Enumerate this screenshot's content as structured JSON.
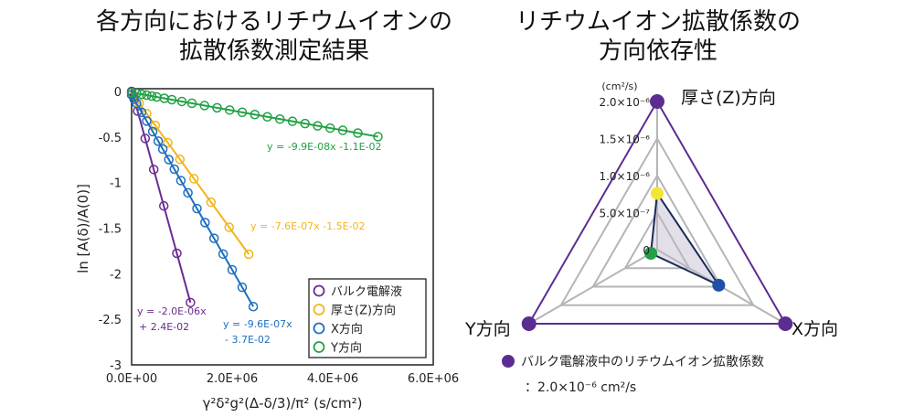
{
  "chart_data": [
    {
      "type": "scatter",
      "title": [
        "各方向におけるリチウムイオンの",
        "拡散係数測定結果"
      ],
      "xlabel": "γ²δ²g²(Δ-δ/3)/π² (s/cm²)",
      "ylabel": "ln [A(δ)/A(0)]",
      "xlim": [
        0,
        6000000
      ],
      "ylim": [
        -3,
        0
      ],
      "xticks": [
        "0.0E+00",
        "2.0E+06",
        "4.0E+06",
        "6.0E+06"
      ],
      "yticks": [
        "0",
        "-0.5",
        "-1",
        "-1.5",
        "-2",
        "-2.5",
        "-3"
      ],
      "series": [
        {
          "name": "バルク電解液",
          "color": "#6a2c91",
          "slope": -2e-06,
          "intercept": 0.024,
          "fit_label": [
            "y = -2.0E-06x",
            "+ 2.4E-02"
          ],
          "x": [
            0,
            40000,
            120000,
            270000,
            440000,
            640000,
            900000,
            1170000
          ]
        },
        {
          "name": "厚さ(Z)方向",
          "color": "#f2b51c",
          "slope": -7.6e-07,
          "intercept": -0.015,
          "fit_label": [
            "y = -7.6E-07x -1.5E-02"
          ],
          "x": [
            0,
            150000,
            300000,
            470000,
            720000,
            960000,
            1240000,
            1580000,
            1940000,
            2330000
          ]
        },
        {
          "name": "X方向",
          "color": "#1f6fbf",
          "slope": -9.6e-07,
          "intercept": -0.037,
          "fit_label": [
            "y = -9.6E-07x",
            "- 3.7E-02"
          ],
          "x": [
            0,
            50000,
            100000,
            200000,
            300000,
            420000,
            530000,
            620000,
            740000,
            850000,
            980000,
            1120000,
            1300000,
            1460000,
            1640000,
            1820000,
            2000000,
            2200000,
            2420000
          ]
        },
        {
          "name": "Y方向",
          "color": "#22a045",
          "slope": -9.9e-08,
          "intercept": -0.011,
          "fit_label": [
            "y = -9.9E-08x -1.1E-02"
          ],
          "x": [
            0,
            100000,
            200000,
            300000,
            400000,
            500000,
            650000,
            800000,
            1000000,
            1200000,
            1450000,
            1700000,
            1950000,
            2200000,
            2450000,
            2700000,
            2950000,
            3200000,
            3450000,
            3700000,
            3950000,
            4200000,
            4500000,
            4900000
          ]
        }
      ],
      "legend": "bottom-right"
    },
    {
      "type": "radar",
      "title": [
        "リチウムイオン拡散係数の",
        "方向依存性"
      ],
      "unit": "(cm²/s)",
      "rmax": 2e-06,
      "ticks": [
        {
          "v": 0,
          "label": "0"
        },
        {
          "v": 5e-07,
          "label": "5.0×10⁻⁷"
        },
        {
          "v": 1e-06,
          "label": "1.0×10⁻⁶"
        },
        {
          "v": 1.5e-06,
          "label": "1.5×10⁻⁶"
        },
        {
          "v": 2e-06,
          "label": "2.0×10⁻⁶"
        }
      ],
      "axes": [
        "厚さ(Z)方向",
        "X方向",
        "Y方向"
      ],
      "values": [
        7.6e-07,
        9.6e-07,
        9.9e-08
      ],
      "point_colors": [
        "#f0e634",
        "#1f4fa8",
        "#22a045"
      ],
      "bulk": {
        "value": 2e-06,
        "color": "#5c2d91",
        "legend": "バルク電解液中のリチウムイオン拡散係数",
        "legend_value": "：2.0×10⁻⁶ cm²/s"
      }
    }
  ]
}
